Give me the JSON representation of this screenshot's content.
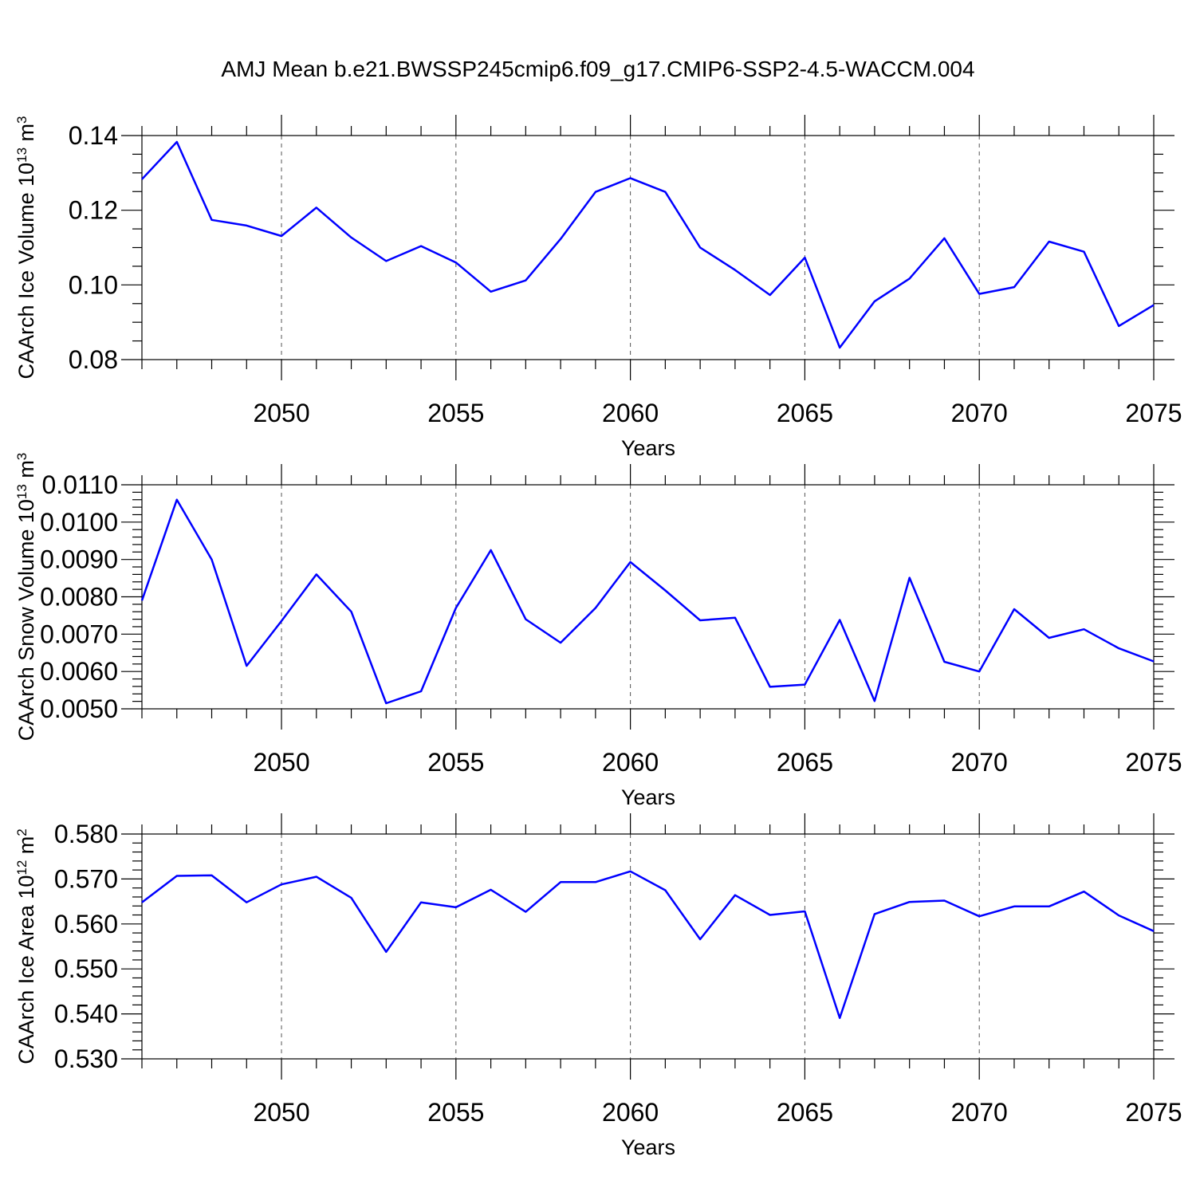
{
  "figure_title": "AMJ Mean b.e21.BWSSP245cmip6.f09_g17.CMIP6-SSP2-4.5-WACCM.004",
  "line_color": "#0000ff",
  "chart_data": [
    {
      "type": "line",
      "ylabel": "CAArch Ice Volume 10",
      "ylabel_exp": "13",
      "ylabel_unit": " m",
      "ylabel_unit_exp": "3",
      "xlabel": "Years",
      "xlim": [
        2046,
        2075
      ],
      "ylim": [
        0.08,
        0.14
      ],
      "x_ticks": [
        "2050",
        "2055",
        "2060",
        "2065",
        "2070",
        "2075"
      ],
      "y_ticks": [
        "0.08",
        "0.10",
        "0.12",
        "0.14"
      ],
      "grid": "vertical dashed at labeled years",
      "x": [
        2046,
        2047,
        2048,
        2049,
        2050,
        2051,
        2052,
        2053,
        2054,
        2055,
        2056,
        2057,
        2058,
        2059,
        2060,
        2061,
        2062,
        2063,
        2064,
        2065,
        2066,
        2067,
        2068,
        2069,
        2070,
        2071,
        2072,
        2073,
        2074,
        2075
      ],
      "values": [
        0.1283,
        0.1383,
        0.1174,
        0.1159,
        0.1131,
        0.1207,
        0.1127,
        0.1064,
        0.1104,
        0.106,
        0.0982,
        0.1012,
        0.1123,
        0.1249,
        0.1286,
        0.1249,
        0.11,
        0.104,
        0.0973,
        0.1073,
        0.0832,
        0.0956,
        0.1017,
        0.1125,
        0.0976,
        0.0994,
        0.1116,
        0.1089,
        0.089,
        0.0946
      ]
    },
    {
      "type": "line",
      "ylabel": "CAArch Snow Volume 10",
      "ylabel_exp": "13",
      "ylabel_unit": " m",
      "ylabel_unit_exp": "3",
      "xlabel": "Years",
      "xlim": [
        2046,
        2075
      ],
      "ylim": [
        0.005,
        0.011
      ],
      "x_ticks": [
        "2050",
        "2055",
        "2060",
        "2065",
        "2070",
        "2075"
      ],
      "y_ticks": [
        "0.0050",
        "0.0060",
        "0.0070",
        "0.0080",
        "0.0090",
        "0.0100",
        "0.0110"
      ],
      "grid": "vertical dashed at labeled years",
      "x": [
        2046,
        2047,
        2048,
        2049,
        2050,
        2051,
        2052,
        2053,
        2054,
        2055,
        2056,
        2057,
        2058,
        2059,
        2060,
        2061,
        2062,
        2063,
        2064,
        2065,
        2066,
        2067,
        2068,
        2069,
        2070,
        2071,
        2072,
        2073,
        2074,
        2075
      ],
      "values": [
        0.0079,
        0.0106,
        0.009,
        0.00615,
        0.00735,
        0.0086,
        0.0076,
        0.00515,
        0.00547,
        0.0077,
        0.00925,
        0.0074,
        0.00677,
        0.0077,
        0.00893,
        0.00817,
        0.00737,
        0.00744,
        0.00559,
        0.00565,
        0.00738,
        0.00521,
        0.00851,
        0.00626,
        0.006,
        0.00767,
        0.0069,
        0.00713,
        0.00662,
        0.00627
      ]
    },
    {
      "type": "line",
      "ylabel": "CAArch Ice Area 10",
      "ylabel_exp": "12",
      "ylabel_unit": " m",
      "ylabel_unit_exp": "2",
      "xlabel": "Years",
      "xlim": [
        2046,
        2075
      ],
      "ylim": [
        0.53,
        0.58
      ],
      "x_ticks": [
        "2050",
        "2055",
        "2060",
        "2065",
        "2070",
        "2075"
      ],
      "y_ticks": [
        "0.530",
        "0.540",
        "0.550",
        "0.560",
        "0.570",
        "0.580"
      ],
      "grid": "vertical dashed at labeled years",
      "x": [
        2046,
        2047,
        2048,
        2049,
        2050,
        2051,
        2052,
        2053,
        2054,
        2055,
        2056,
        2057,
        2058,
        2059,
        2060,
        2061,
        2062,
        2063,
        2064,
        2065,
        2066,
        2067,
        2068,
        2069,
        2070,
        2071,
        2072,
        2073,
        2074,
        2075
      ],
      "values": [
        0.5648,
        0.5707,
        0.5708,
        0.5648,
        0.5688,
        0.5705,
        0.5658,
        0.5538,
        0.5648,
        0.5637,
        0.5676,
        0.5627,
        0.5693,
        0.5693,
        0.5717,
        0.5675,
        0.5566,
        0.5664,
        0.562,
        0.5628,
        0.5391,
        0.5622,
        0.5649,
        0.5652,
        0.5617,
        0.5639,
        0.5639,
        0.5672,
        0.5619,
        0.5584
      ]
    }
  ]
}
